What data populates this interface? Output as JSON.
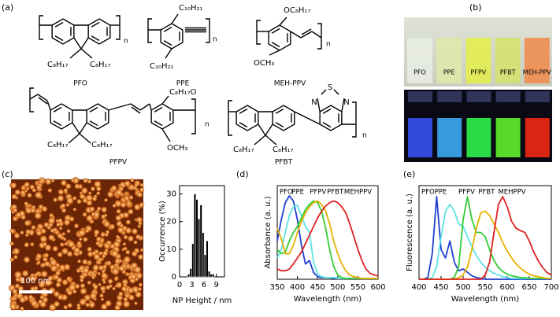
{
  "figure": {
    "panel_labels": [
      "(a)",
      "(b)",
      "(c)",
      "(d)",
      "(e)"
    ],
    "structures": [
      {
        "name": "PFO",
        "n": "n",
        "groups": [
          "C₈H₁₇",
          "C₈H₁₇"
        ]
      },
      {
        "name": "PPE",
        "n": "n",
        "groups": [
          "C₁₀H₂₁",
          "C₁₀H₂₁"
        ]
      },
      {
        "name": "MEH-PPV",
        "n": "n",
        "groups": [
          "OC₈H₁₇",
          "OCH₃"
        ]
      },
      {
        "name": "PFPV",
        "n": "n",
        "groups": [
          "C₈H₁₇O",
          "C₈H₁₇",
          "C₈H₁₇",
          "OCH₃"
        ]
      },
      {
        "name": "PFBT",
        "n": "n",
        "groups": [
          "S",
          "N",
          "N",
          "C₈H₁₇",
          "C₈H₁₇"
        ]
      }
    ],
    "photo_labels": [
      "PFO",
      "PPE",
      "PFPV",
      "PFBT",
      "MEH-PPV"
    ],
    "afm_scale_bar": "100 nm"
  },
  "chart_data": [
    {
      "type": "histogram",
      "xlabel": "NP Height / nm",
      "ylabel": "Occurrence (%)",
      "bins": [
        2,
        2.5,
        3,
        3.5,
        4,
        4.5,
        5,
        5.5,
        6,
        6.5,
        7,
        7.5,
        8,
        8.5
      ],
      "values": [
        1,
        3,
        12,
        30,
        28,
        21,
        26,
        16,
        8,
        13,
        2,
        1,
        1
      ],
      "color": "#000000",
      "xlim": [
        0,
        11
      ],
      "xticks": [
        0,
        3,
        6,
        9
      ],
      "ylim": [
        0,
        33
      ],
      "yticks": [
        0,
        10,
        20,
        30
      ]
    },
    {
      "type": "line",
      "xlabel": "Wavelength (nm)",
      "ylabel": "Absorbance (a. u.)",
      "x": [
        350,
        360,
        370,
        380,
        390,
        400,
        410,
        420,
        430,
        440,
        450,
        460,
        470,
        480,
        490,
        500,
        510,
        520,
        530,
        540,
        550,
        560,
        570,
        580,
        590,
        600
      ],
      "series": [
        {
          "name": "PFO",
          "color": "#1f3fd0",
          "values": [
            0.45,
            0.7,
            0.9,
            0.98,
            0.92,
            0.7,
            0.4,
            0.18,
            0.22,
            0.08,
            0.03,
            0.02,
            0.02,
            0.02,
            0.01,
            0.01,
            0.01,
            0.01,
            0.01,
            0.01,
            0.01,
            0.01,
            0.01,
            0.01,
            0.01,
            0.01
          ]
        },
        {
          "name": "PPE",
          "color": "#5fe3e3",
          "values": [
            0.25,
            0.35,
            0.55,
            0.75,
            0.85,
            0.87,
            0.75,
            0.62,
            0.55,
            0.2,
            0.06,
            0.03,
            0.02,
            0.02,
            0.02,
            0.01,
            0.01,
            0.01,
            0.01,
            0.01,
            0.01,
            0.01,
            0.01,
            0.01,
            0.01,
            0.01
          ]
        },
        {
          "name": "PFPV",
          "color": "#33cc33",
          "values": [
            0.35,
            0.3,
            0.32,
            0.45,
            0.55,
            0.62,
            0.72,
            0.82,
            0.88,
            0.92,
            0.9,
            0.8,
            0.6,
            0.35,
            0.15,
            0.05,
            0.02,
            0.01,
            0.01,
            0.01,
            0.01,
            0.01,
            0.01,
            0.01,
            0.01,
            0.01
          ]
        },
        {
          "name": "PFBT",
          "color": "#e8b000",
          "values": [
            0.6,
            0.48,
            0.3,
            0.3,
            0.4,
            0.55,
            0.68,
            0.78,
            0.85,
            0.9,
            0.92,
            0.88,
            0.8,
            0.65,
            0.45,
            0.3,
            0.18,
            0.1,
            0.05,
            0.03,
            0.02,
            0.01,
            0.01,
            0.01,
            0.01,
            0.01
          ]
        },
        {
          "name": "MEHPPV",
          "color": "#e02020",
          "values": [
            0.12,
            0.1,
            0.1,
            0.12,
            0.18,
            0.25,
            0.32,
            0.42,
            0.52,
            0.62,
            0.72,
            0.8,
            0.86,
            0.9,
            0.92,
            0.9,
            0.85,
            0.78,
            0.65,
            0.5,
            0.35,
            0.22,
            0.12,
            0.07,
            0.05,
            0.04
          ]
        }
      ],
      "xlim": [
        350,
        600
      ],
      "xticks": [
        350,
        400,
        450,
        500,
        550,
        600
      ],
      "ylim": [
        0,
        1.1
      ]
    },
    {
      "type": "line",
      "xlabel": "Wavelength (nm)",
      "ylabel": "Fluorescence (a. u.)",
      "x": [
        400,
        410,
        420,
        430,
        440,
        450,
        460,
        470,
        480,
        490,
        500,
        510,
        520,
        530,
        540,
        550,
        560,
        570,
        580,
        590,
        600,
        610,
        620,
        630,
        640,
        650,
        660,
        670,
        680,
        690,
        700
      ],
      "series": [
        {
          "name": "PFO",
          "color": "#1f3fd0",
          "values": [
            0,
            0,
            0.02,
            0.3,
            0.97,
            0.35,
            0.25,
            0.45,
            0.2,
            0.1,
            0.12,
            0.08,
            0.04,
            0.02,
            0.01,
            0,
            0,
            0,
            0,
            0,
            0,
            0,
            0,
            0,
            0,
            0,
            0,
            0,
            0,
            0,
            0
          ]
        },
        {
          "name": "PPE",
          "color": "#5fe3e3",
          "values": [
            0,
            0,
            0,
            0.02,
            0.15,
            0.5,
            0.8,
            0.88,
            0.8,
            0.65,
            0.62,
            0.5,
            0.38,
            0.28,
            0.2,
            0.14,
            0.1,
            0.07,
            0.05,
            0.03,
            0.02,
            0.01,
            0.01,
            0.01,
            0.01,
            0.01,
            0.01,
            0.01,
            0.01,
            0.01,
            0.01
          ]
        },
        {
          "name": "PFPV",
          "color": "#33cc33",
          "values": [
            0,
            0,
            0,
            0,
            0,
            0,
            0,
            0,
            0.02,
            0.15,
            0.7,
            0.97,
            0.7,
            0.55,
            0.55,
            0.5,
            0.35,
            0.22,
            0.14,
            0.09,
            0.06,
            0.04,
            0.03,
            0.02,
            0.02,
            0.01,
            0.01,
            0.01,
            0.01,
            0.01,
            0.01
          ]
        },
        {
          "name": "PFBT",
          "color": "#e8b000",
          "values": [
            0,
            0,
            0,
            0,
            0,
            0,
            0,
            0,
            0,
            0.02,
            0.05,
            0.15,
            0.35,
            0.6,
            0.78,
            0.8,
            0.75,
            0.65,
            0.55,
            0.43,
            0.33,
            0.25,
            0.18,
            0.13,
            0.09,
            0.06,
            0.04,
            0.03,
            0.02,
            0.01,
            0.01
          ]
        },
        {
          "name": "MEHPPV",
          "color": "#e02020",
          "values": [
            0,
            0,
            0,
            0,
            0,
            0,
            0,
            0,
            0,
            0,
            0,
            0,
            0,
            0,
            0,
            0.05,
            0.2,
            0.55,
            0.88,
            0.97,
            0.85,
            0.68,
            0.6,
            0.57,
            0.55,
            0.45,
            0.32,
            0.22,
            0.14,
            0.08,
            0.05
          ]
        }
      ],
      "xlim": [
        400,
        700
      ],
      "xticks": [
        400,
        450,
        500,
        550,
        600,
        650,
        700
      ],
      "ylim": [
        0,
        1.1
      ]
    }
  ]
}
